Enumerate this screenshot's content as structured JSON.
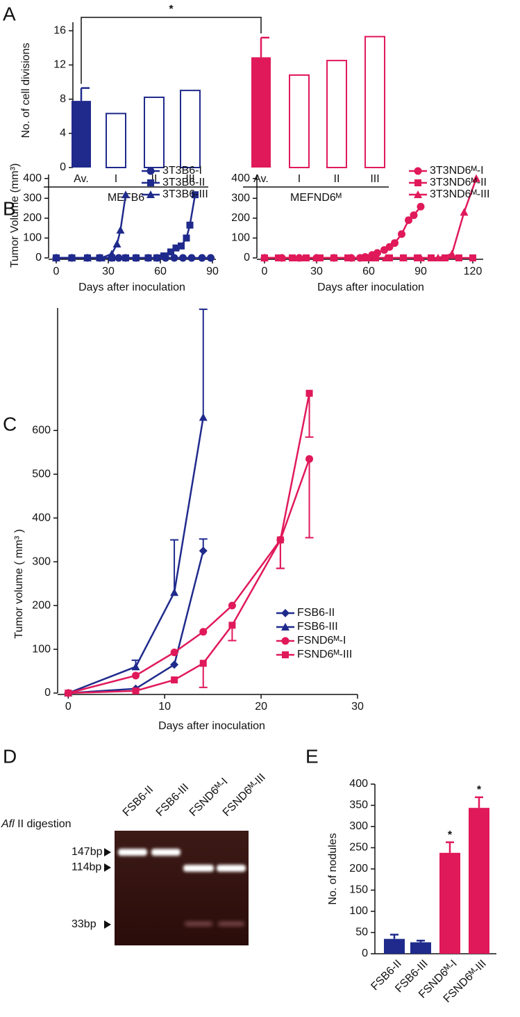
{
  "chart_data": [
    {
      "type": "bar",
      "panel": "A",
      "ylabel": "No. of cell divisions",
      "ylim": [
        0,
        17
      ],
      "yticks": [
        0,
        4,
        8,
        12,
        16
      ],
      "significance": "*",
      "groups": [
        {
          "label": "MEFB6",
          "color": "#1f2a8c",
          "categories": [
            "Av.",
            "I",
            "II",
            "III"
          ],
          "values": [
            7.8,
            6.4,
            8.3,
            9.1
          ],
          "errors": [
            1.5,
            null,
            null,
            null
          ],
          "filled": [
            true,
            false,
            false,
            false
          ]
        },
        {
          "label": "MEFND6ᴹ",
          "color": "#e0195a",
          "categories": [
            "Av.",
            "I",
            "II",
            "III"
          ],
          "values": [
            12.9,
            10.9,
            12.6,
            15.4
          ],
          "errors": [
            2.3,
            null,
            null,
            null
          ],
          "filled": [
            true,
            false,
            false,
            false
          ]
        }
      ]
    },
    {
      "type": "line",
      "panel": "B",
      "ylabel": "Tumor Volume (mm³)",
      "xlabel": "Days after inoculation",
      "xlim": [
        -4.4,
        92
      ],
      "xticks": [
        0,
        30,
        60,
        90
      ],
      "ylim": [
        0,
        420
      ],
      "yticks": [
        0,
        100,
        200,
        300,
        400
      ],
      "legend": "upper right",
      "series": [
        {
          "name": "3T3B6-I",
          "color": "#1f2a8c",
          "marker": "circle",
          "x": [
            0,
            9,
            18,
            25,
            32,
            36,
            40,
            46,
            53,
            58,
            63,
            68,
            73,
            78,
            84,
            89
          ],
          "values": [
            0,
            0,
            0,
            0,
            0,
            0,
            0,
            0,
            0,
            0,
            0,
            0,
            0,
            0,
            0,
            0
          ]
        },
        {
          "name": "3T3B6-II",
          "color": "#1f2a8c",
          "marker": "square",
          "x": [
            0,
            9,
            18,
            25,
            32,
            40,
            46,
            53,
            58,
            62,
            66,
            69,
            72,
            75,
            77,
            80
          ],
          "values": [
            0,
            0,
            0,
            0,
            0,
            0,
            0,
            0,
            0,
            10,
            30,
            50,
            60,
            100,
            165,
            318
          ]
        },
        {
          "name": "3T3B6-III",
          "color": "#1f2a8c",
          "marker": "triangle",
          "x": [
            0,
            9,
            18,
            26,
            32,
            35,
            37,
            40
          ],
          "values": [
            0,
            0,
            0,
            0,
            20,
            70,
            140,
            318
          ]
        }
      ]
    },
    {
      "type": "line",
      "xlabel": "Days after inoculation",
      "xlim": [
        -4.4,
        126
      ],
      "xticks": [
        0,
        30,
        60,
        90,
        120
      ],
      "ylim": [
        0,
        420
      ],
      "yticks": [
        0,
        100,
        200,
        300,
        400
      ],
      "legend": "upper right",
      "series": [
        {
          "name": "3T3ND6ᴹ-I",
          "color": "#e0195a",
          "marker": "circle",
          "x": [
            0,
            10,
            20,
            30,
            40,
            50,
            55,
            58,
            62,
            65,
            69,
            72,
            75,
            79,
            83,
            86,
            90
          ],
          "values": [
            0,
            0,
            0,
            0,
            0,
            0,
            0,
            5,
            15,
            25,
            40,
            55,
            75,
            120,
            190,
            215,
            258
          ]
        },
        {
          "name": "3T3ND6ᴹ-II",
          "color": "#e0195a",
          "marker": "square",
          "x": [
            0,
            8,
            16,
            24,
            32,
            40,
            48,
            56,
            64,
            72,
            80,
            88,
            96,
            104,
            112,
            120
          ],
          "values": [
            0,
            0,
            0,
            0,
            0,
            0,
            0,
            0,
            0,
            0,
            0,
            0,
            0,
            0,
            0,
            0
          ]
        },
        {
          "name": "3T3ND6ᴹ-III",
          "color": "#e0195a",
          "marker": "triangle",
          "x": [
            0,
            10,
            20,
            30,
            40,
            50,
            60,
            70,
            80,
            90,
            100,
            108,
            115,
            122
          ],
          "values": [
            0,
            0,
            0,
            0,
            0,
            0,
            0,
            0,
            0,
            0,
            0,
            20,
            230,
            400
          ]
        }
      ]
    },
    {
      "type": "line",
      "panel": "C",
      "ylabel": "Tumor volume ( mm³ )",
      "xlabel": "Days after inoculation",
      "xlim": [
        -1.1,
        30
      ],
      "xticks": [
        0,
        10,
        20,
        30
      ],
      "ylim": [
        0,
        880
      ],
      "yticks": [
        0,
        100,
        200,
        300,
        400,
        500,
        600
      ],
      "legend": "lower right",
      "series": [
        {
          "name": "FSB6-II",
          "color": "#1f2a8c",
          "marker": "diamond",
          "error_side": "up",
          "x": [
            0,
            7,
            11,
            14
          ],
          "values": [
            0,
            10,
            65,
            325
          ],
          "errors": [
            null,
            null,
            null,
            27
          ]
        },
        {
          "name": "FSB6-III",
          "color": "#1f2a8c",
          "marker": "triangle",
          "error_side": "up",
          "x": [
            0,
            7,
            11,
            14
          ],
          "values": [
            0,
            60,
            230,
            630
          ],
          "errors": [
            null,
            15,
            120,
            247
          ]
        },
        {
          "name": "FSND6ᴹ-I",
          "color": "#e0195a",
          "marker": "circle",
          "error_side": "down",
          "x": [
            0,
            7,
            11,
            14,
            17,
            22,
            25
          ],
          "values": [
            0,
            40,
            93,
            140,
            200,
            350,
            535
          ],
          "errors": [
            null,
            null,
            null,
            null,
            null,
            65,
            180
          ]
        },
        {
          "name": "FSND6ᴹ-III",
          "color": "#e0195a",
          "marker": "square",
          "error_side": "down",
          "x": [
            0,
            7,
            11,
            14,
            17,
            22,
            25
          ],
          "values": [
            0,
            5,
            30,
            68,
            155,
            350,
            685
          ],
          "errors": [
            null,
            null,
            null,
            55,
            35,
            65,
            100
          ]
        }
      ]
    },
    {
      "type": "bar",
      "panel": "E",
      "ylabel": "No. of nodules",
      "ylim": [
        0,
        400
      ],
      "yticks": [
        0,
        50,
        100,
        150,
        200,
        250,
        300,
        350,
        400
      ],
      "categories": [
        "FSB6-II",
        "FSB6-III",
        "FSND6ᴹ-I",
        "FSND6ᴹ-III"
      ],
      "values": [
        35,
        27,
        238,
        344
      ],
      "errors": [
        10,
        4,
        25,
        25
      ],
      "colors": [
        "#1f2a8c",
        "#1f2a8c",
        "#e0195a",
        "#e0195a"
      ],
      "markers": [
        null,
        null,
        "*",
        "*"
      ]
    }
  ],
  "gel": {
    "panel": "D",
    "enzyme": "Afl",
    "enzyme_suffix": " II digestion",
    "lanes": [
      "FSB6-II",
      "FSB6-III",
      "FSND6ᴹ-I",
      "FSND6ᴹ-III"
    ],
    "sizes": [
      "147bp",
      "114bp",
      "33bp"
    ]
  }
}
